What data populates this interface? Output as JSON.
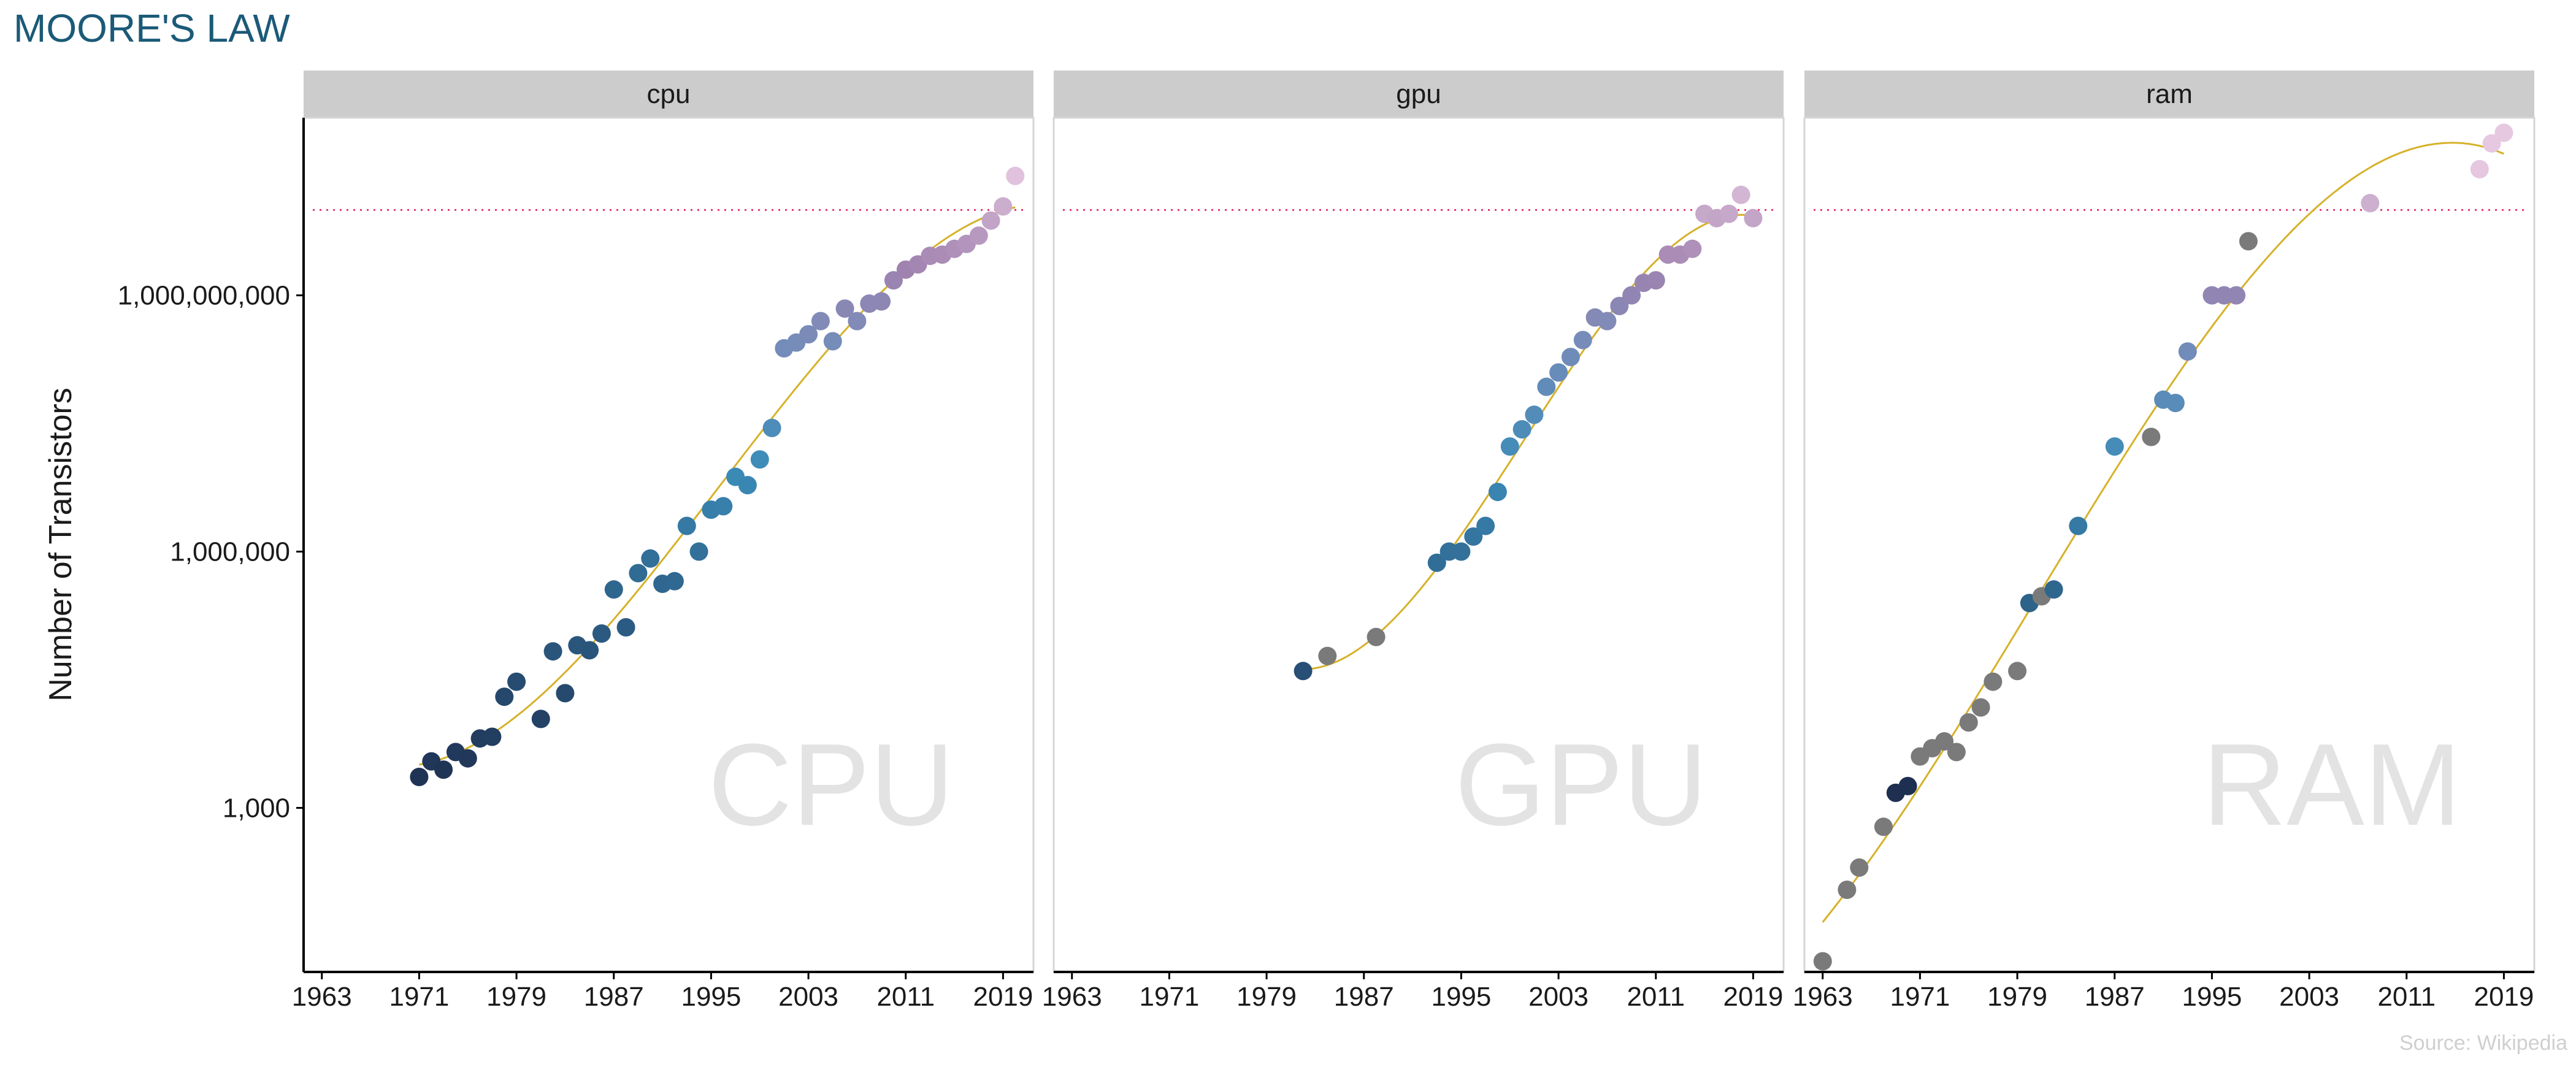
{
  "title": "MOORE'S LAW",
  "source": "Source: Wikipedia",
  "colors": {
    "title": "#1b5a78",
    "strip": "#cccccc",
    "trend": "#d6b12a",
    "reference_line": "#e8366d",
    "watermark": "#e3e3e3",
    "grey_point": "#7a7a7a"
  },
  "chart_data": {
    "type": "scatter",
    "ylabel": "Number of Transistors",
    "xlabel": "",
    "y_scale": "log10",
    "ylim": [
      12,
      120000000000
    ],
    "xlim": [
      1961.5,
      2021.5
    ],
    "x_ticks": [
      1963,
      1971,
      1979,
      1987,
      1995,
      2003,
      2011,
      2019
    ],
    "x_tick_labels": [
      "1963",
      "1971",
      "1979",
      "1987",
      "1995",
      "2003",
      "2011",
      "2019"
    ],
    "y_ticks": [
      1000,
      1000000,
      1000000000
    ],
    "y_tick_labels": [
      "1,000",
      "1,000,000",
      "1,000,000,000"
    ],
    "reference_line_y": 10000000000,
    "grid": false,
    "panels": [
      {
        "strip": "cpu",
        "watermark": "CPU",
        "trend_fit": "loess",
        "points": [
          [
            1971,
            2300
          ],
          [
            1972,
            3500
          ],
          [
            1973,
            2800
          ],
          [
            1974,
            4500
          ],
          [
            1975,
            3800
          ],
          [
            1976,
            6500
          ],
          [
            1977,
            6800
          ],
          [
            1978,
            20000
          ],
          [
            1979,
            30000
          ],
          [
            1981,
            11000
          ],
          [
            1982,
            68000
          ],
          [
            1983,
            22000
          ],
          [
            1984,
            80000
          ],
          [
            1985,
            70000
          ],
          [
            1986,
            110000
          ],
          [
            1987,
            360000
          ],
          [
            1988,
            130000
          ],
          [
            1989,
            560000
          ],
          [
            1990,
            830000
          ],
          [
            1991,
            420000
          ],
          [
            1992,
            450000
          ],
          [
            1993,
            2000000
          ],
          [
            1994,
            1000000
          ],
          [
            1995,
            3100000
          ],
          [
            1996,
            3400000
          ],
          [
            1997,
            7500000
          ],
          [
            1998,
            6000000
          ],
          [
            1999,
            12000000
          ],
          [
            2000,
            28000000
          ],
          [
            2001,
            240000000
          ],
          [
            2002,
            280000000
          ],
          [
            2003,
            350000000
          ],
          [
            2004,
            500000000
          ],
          [
            2005,
            290000000
          ],
          [
            2006,
            700000000
          ],
          [
            2007,
            500000000
          ],
          [
            2008,
            800000000
          ],
          [
            2009,
            850000000
          ],
          [
            2010,
            1500000000
          ],
          [
            2011,
            2000000000
          ],
          [
            2012,
            2300000000
          ],
          [
            2013,
            2900000000
          ],
          [
            2014,
            3000000000
          ],
          [
            2015,
            3500000000
          ],
          [
            2016,
            4000000000
          ],
          [
            2017,
            5000000000
          ],
          [
            2018,
            7500000000
          ],
          [
            2019,
            11000000000
          ],
          [
            2020,
            25000000000
          ]
        ]
      },
      {
        "strip": "gpu",
        "watermark": "GPU",
        "trend_fit": "loess",
        "points": [
          [
            1982,
            40000
          ],
          [
            1984,
            60000
          ],
          [
            1988,
            100000
          ],
          [
            1993,
            740000
          ],
          [
            1994,
            1000000
          ],
          [
            1995,
            1000000
          ],
          [
            1996,
            1500000
          ],
          [
            1997,
            2000000
          ],
          [
            1998,
            5000000
          ],
          [
            1999,
            17000000
          ],
          [
            2000,
            27000000
          ],
          [
            2001,
            40000000
          ],
          [
            2002,
            85000000
          ],
          [
            2003,
            125000000
          ],
          [
            2004,
            190000000
          ],
          [
            2005,
            300000000
          ],
          [
            2006,
            550000000
          ],
          [
            2007,
            500000000
          ],
          [
            2008,
            750000000
          ],
          [
            2009,
            1000000000
          ],
          [
            2010,
            1400000000
          ],
          [
            2011,
            1500000000
          ],
          [
            2012,
            3000000000
          ],
          [
            2013,
            3000000000
          ],
          [
            2014,
            3500000000
          ],
          [
            2015,
            9000000000
          ],
          [
            2016,
            8000000000
          ],
          [
            2017,
            9000000000
          ],
          [
            2018,
            15000000000
          ],
          [
            2019,
            8000000000
          ]
        ]
      },
      {
        "strip": "ram",
        "watermark": "RAM",
        "trend_fit": "loess",
        "points": [
          [
            1963,
            16
          ],
          [
            1965,
            110
          ],
          [
            1966,
            200
          ],
          [
            1968,
            600
          ],
          [
            1969,
            1500
          ],
          [
            1970,
            1800
          ],
          [
            1971,
            4000
          ],
          [
            1972,
            5000
          ],
          [
            1973,
            6000
          ],
          [
            1974,
            4500
          ],
          [
            1975,
            10000
          ],
          [
            1976,
            15000
          ],
          [
            1977,
            30000
          ],
          [
            1979,
            40000
          ],
          [
            1980,
            250000
          ],
          [
            1981,
            300000
          ],
          [
            1982,
            360000
          ],
          [
            1984,
            2000000
          ],
          [
            1987,
            17000000
          ],
          [
            1990,
            22000000
          ],
          [
            1991,
            60000000
          ],
          [
            1992,
            55000000
          ],
          [
            1993,
            220000000
          ],
          [
            1995,
            1000000000
          ],
          [
            1996,
            1000000000
          ],
          [
            1997,
            1000000000
          ],
          [
            1998,
            4300000000
          ],
          [
            2008,
            12000000000
          ],
          [
            2017,
            30000000000
          ],
          [
            2018,
            60000000000
          ],
          [
            2019,
            80000000000
          ]
        ]
      }
    ]
  }
}
